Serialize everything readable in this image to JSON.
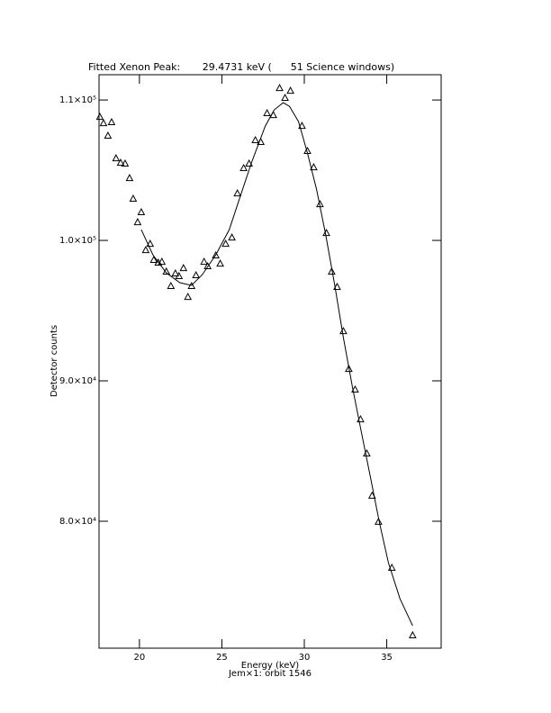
{
  "chart_data": {
    "type": "scatter",
    "title": "Fitted Xenon Peak:       29.4731 keV (      51 Science windows)",
    "x_label": "Energy (keV)",
    "subtitle": "Jem×1: orbit 1546",
    "y_label": "Detector counts",
    "xlim": [
      17.55,
      38.3
    ],
    "ylim": [
      70960,
      111800
    ],
    "xticks": [
      20,
      25,
      30,
      35
    ],
    "yticks": [
      {
        "value": 80000,
        "label": "8.0×10⁴"
      },
      {
        "value": 90000,
        "label": "9.0×10⁴"
      },
      {
        "value": 100000,
        "label": "1.0×10⁵"
      },
      {
        "value": 110000,
        "label": "1.1×10⁵"
      }
    ],
    "series": [
      {
        "style": "triangle",
        "color": "#000000",
        "x": [
          17.6,
          17.82,
          18.09,
          18.31,
          18.58,
          18.86,
          19.13,
          19.4,
          19.62,
          19.89,
          20.11,
          20.38,
          20.65,
          20.87,
          21.14,
          21.36,
          21.63,
          21.91,
          22.18,
          22.4,
          22.67,
          22.94,
          23.16,
          23.43,
          23.92,
          24.14,
          24.63,
          24.9,
          25.23,
          25.61,
          25.94,
          26.32,
          26.65,
          27.03,
          27.36,
          27.74,
          28.12,
          28.5,
          28.83,
          29.16,
          29.86,
          30.19,
          30.57,
          30.95,
          31.34,
          31.66,
          31.99,
          32.37,
          32.7,
          33.08,
          33.41,
          33.79,
          34.11,
          34.5,
          35.31,
          36.57
        ],
        "values": [
          108780,
          108330,
          107440,
          108400,
          105830,
          105510,
          105450,
          104420,
          102950,
          101280,
          101990,
          99290,
          99740,
          98590,
          98400,
          98460,
          97760,
          96730,
          97630,
          97440,
          98010,
          95960,
          96730,
          97500,
          98460,
          98140,
          98910,
          98330,
          99740,
          100190,
          103330,
          105130,
          105450,
          107120,
          106990,
          109040,
          108910,
          110830,
          110130,
          110640,
          108140,
          106350,
          105190,
          102560,
          100510,
          97760,
          96670,
          93520,
          90830,
          89360,
          87240,
          84810,
          81800,
          79940,
          76670,
          71860
        ]
      },
      {
        "style": "line",
        "color": "#000000",
        "x": [
          20.11,
          20.82,
          21.63,
          22.45,
          23.16,
          23.81,
          24.63,
          25.45,
          25.99,
          26.81,
          27.63,
          28.17,
          28.72,
          29.1,
          29.65,
          30.19,
          30.74,
          31.29,
          31.83,
          32.37,
          32.92,
          33.46,
          34.01,
          34.55,
          35.1,
          35.8,
          36.57
        ],
        "values": [
          100770,
          98970,
          97690,
          96990,
          96800,
          97560,
          98970,
          100770,
          102690,
          105580,
          108140,
          109290,
          109810,
          109550,
          108460,
          106220,
          103650,
          100450,
          96920,
          93080,
          89550,
          86350,
          83140,
          79940,
          77050,
          74490,
          72560
        ]
      }
    ]
  }
}
